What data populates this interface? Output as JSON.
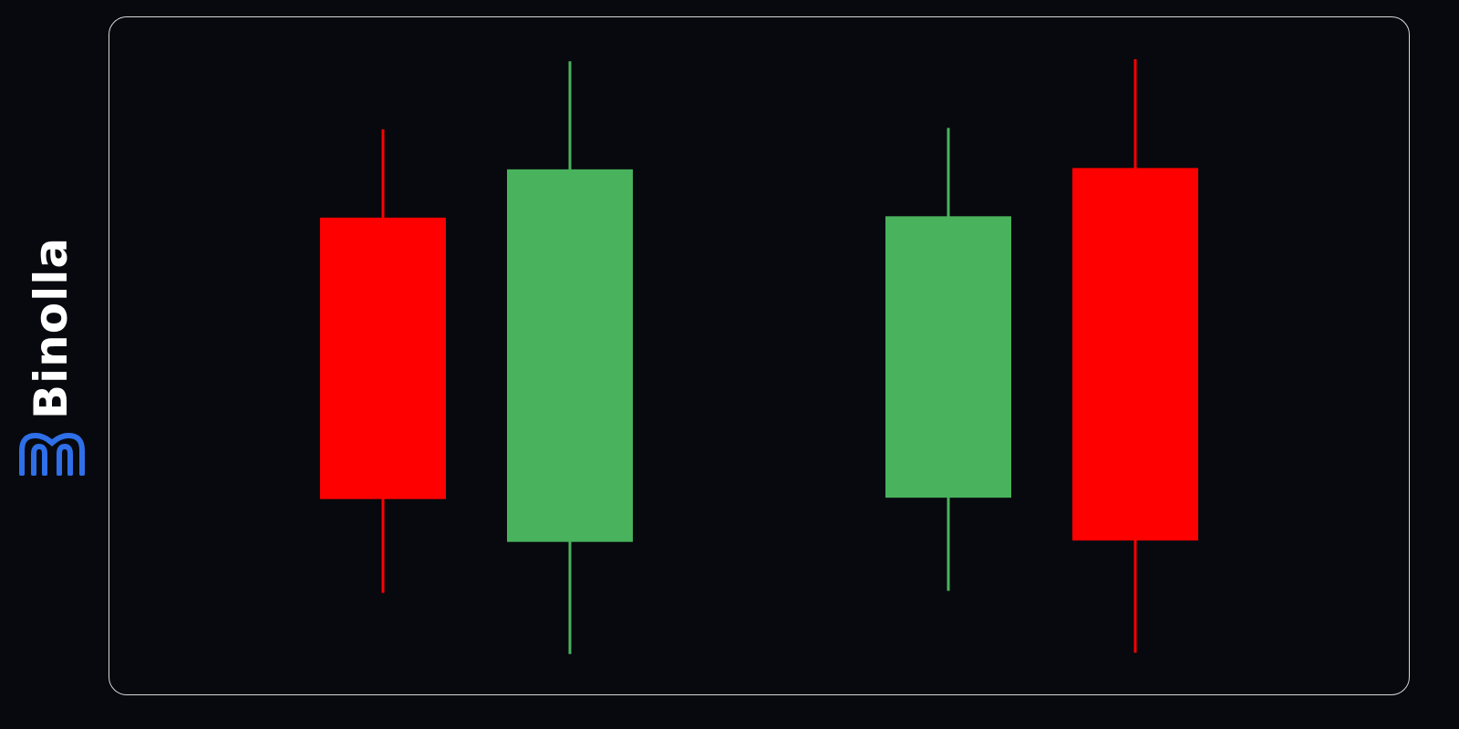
{
  "brand": {
    "name": "Binolla",
    "logo_color": "#2f6fe8"
  },
  "colors": {
    "bullish": "#49b25c",
    "bearish": "#ff0000",
    "background": "#07090e",
    "frame": "#d8d8d8"
  },
  "chart_data": {
    "type": "candlestick",
    "candles": [
      {
        "direction": "bearish",
        "open": 70.4,
        "high": 83.4,
        "low": 15.2,
        "close": 29.0
      },
      {
        "direction": "bullish",
        "open": 22.7,
        "high": 93.4,
        "low": 6.2,
        "close": 77.5
      },
      {
        "direction": "bullish",
        "open": 29.2,
        "high": 83.6,
        "low": 15.5,
        "close": 70.6
      },
      {
        "direction": "bearish",
        "open": 77.7,
        "high": 93.7,
        "low": 6.4,
        "close": 22.9
      }
    ]
  }
}
